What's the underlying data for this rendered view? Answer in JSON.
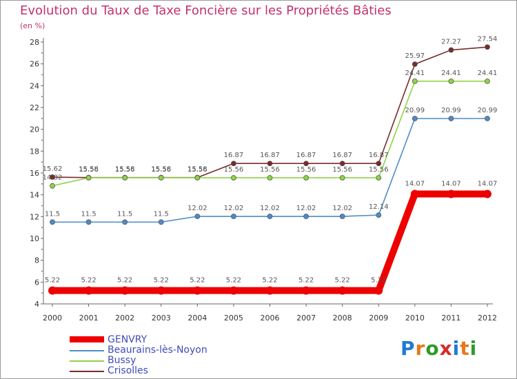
{
  "logo": {
    "text": "Proxiti",
    "letter_colors": [
      "#1f7ad6",
      "#e47a1b",
      "#2f9b2b",
      "#d62a2a",
      "#1f7ad6",
      "#e47a1b",
      "#2f9b2b"
    ]
  },
  "chart_data": {
    "type": "line",
    "title": "Evolution du Taux de Taxe Foncière sur les Propriétés Bâties",
    "subtitle": "(en %)",
    "xlabel": "",
    "ylabel": "",
    "ylim": [
      4,
      28
    ],
    "yticks": [
      4,
      6,
      8,
      10,
      12,
      14,
      16,
      18,
      20,
      22,
      24,
      26,
      28
    ],
    "categories": [
      "2000",
      "2001",
      "2002",
      "2003",
      "2004",
      "2005",
      "2006",
      "2007",
      "2008",
      "2009",
      "2010",
      "2011",
      "2012"
    ],
    "grid": false,
    "legend_position": "bottom-left",
    "series": [
      {
        "name": "GENVRY",
        "color": "#ee0000",
        "emphasis": true,
        "values": [
          5.22,
          5.22,
          5.22,
          5.22,
          5.22,
          5.22,
          5.22,
          5.22,
          5.22,
          5.22,
          14.07,
          14.07,
          14.07
        ],
        "labels": [
          "5.22",
          "5.22",
          "5.22",
          "5.22",
          "5.22",
          "5.22",
          "5.22",
          "5.22",
          "5.22",
          "5.22",
          "14.07",
          "14.07",
          "14.07"
        ]
      },
      {
        "name": "Beaurains-lès-Noyon",
        "color": "#4c8cc8",
        "values": [
          11.5,
          11.5,
          11.5,
          11.5,
          12.02,
          12.02,
          12.02,
          12.02,
          12.02,
          12.14,
          20.99,
          20.99,
          20.99
        ],
        "labels": [
          "11.5",
          "11.5",
          "11.5",
          "11.5",
          "12.02",
          "12.02",
          "12.02",
          "12.02",
          "12.02",
          "12.14",
          "20.99",
          "20.99",
          "20.99"
        ]
      },
      {
        "name": "Bussy",
        "color": "#8fd444",
        "values": [
          14.82,
          15.56,
          15.56,
          15.56,
          15.56,
          15.56,
          15.56,
          15.56,
          15.56,
          15.56,
          24.41,
          24.41,
          24.41
        ],
        "labels": [
          "14.82",
          "15.56",
          "15.56",
          "15.56",
          "15.56",
          "15.56",
          "15.56",
          "15.56",
          "15.56",
          "15.56",
          "24.41",
          "24.41",
          "24.41"
        ]
      },
      {
        "name": "Crisolles",
        "color": "#7a2a2a",
        "values": [
          15.62,
          15.58,
          15.58,
          15.58,
          15.58,
          16.87,
          16.87,
          16.87,
          16.87,
          16.87,
          25.97,
          27.27,
          27.54
        ],
        "labels": [
          "15.62",
          "15.58",
          "15.58",
          "15.58",
          "15.58",
          "16.87",
          "16.87",
          "16.87",
          "16.87",
          "16.87",
          "25.97",
          "27.27",
          "27.54"
        ]
      }
    ]
  }
}
